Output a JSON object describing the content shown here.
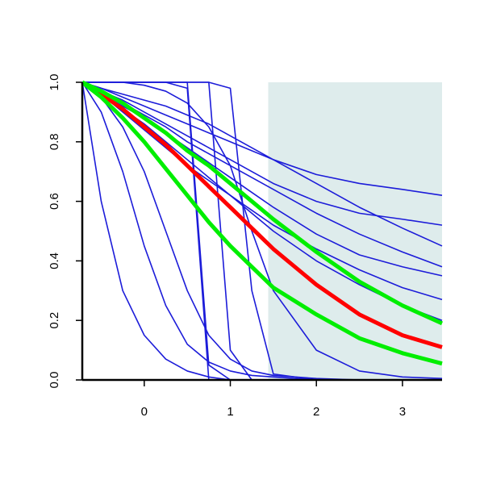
{
  "chart_data": {
    "type": "line",
    "x": [
      -0.72,
      -0.5,
      -0.25,
      0,
      0.25,
      0.5,
      0.75,
      1,
      1.25,
      1.5,
      2,
      2.5,
      3,
      3.46
    ],
    "xlim": [
      -0.72,
      3.46
    ],
    "ylim": [
      0,
      1
    ],
    "xticks": [
      0,
      1,
      2,
      3
    ],
    "yticks": [
      {
        "value": 0,
        "label": "0.0"
      },
      {
        "value": 0.2,
        "label": "0.2"
      },
      {
        "value": 0.4,
        "label": "0.4"
      },
      {
        "value": 0.6,
        "label": "0.6"
      },
      {
        "value": 0.8,
        "label": "0.8"
      },
      {
        "value": 1,
        "label": "1.0"
      }
    ],
    "shade_x": [
      1.44,
      3.46
    ],
    "shade_color": "#deecec",
    "series": [
      {
        "color": "#1c1cd9",
        "values": [
          1,
          0.98,
          0.95,
          0.92,
          0.89,
          0.86,
          0.83,
          0.8,
          0.77,
          0.74,
          0.69,
          0.66,
          0.64,
          0.62
        ]
      },
      {
        "color": "#1c1cd9",
        "values": [
          1,
          0.97,
          0.94,
          0.9,
          0.86,
          0.82,
          0.78,
          0.74,
          0.7,
          0.66,
          0.6,
          0.56,
          0.54,
          0.52
        ]
      },
      {
        "color": "#1c1cd9",
        "values": [
          1,
          0.98,
          0.96,
          0.94,
          0.92,
          0.89,
          0.86,
          0.82,
          0.78,
          0.74,
          0.66,
          0.58,
          0.51,
          0.45
        ]
      },
      {
        "color": "#1c1cd9",
        "values": [
          1,
          0.97,
          0.93,
          0.89,
          0.85,
          0.8,
          0.76,
          0.72,
          0.68,
          0.64,
          0.56,
          0.49,
          0.43,
          0.38
        ]
      },
      {
        "color": "#1c1cd9",
        "values": [
          1,
          0.96,
          0.92,
          0.88,
          0.83,
          0.78,
          0.73,
          0.68,
          0.63,
          0.58,
          0.49,
          0.42,
          0.38,
          0.35
        ]
      },
      {
        "color": "#1c1cd9",
        "values": [
          1,
          0.96,
          0.9,
          0.84,
          0.78,
          0.72,
          0.67,
          0.62,
          0.57,
          0.52,
          0.44,
          0.37,
          0.31,
          0.27
        ]
      },
      {
        "color": "#1c1cd9",
        "values": [
          1,
          0.96,
          0.91,
          0.86,
          0.8,
          0.74,
          0.68,
          0.62,
          0.56,
          0.5,
          0.4,
          0.32,
          0.25,
          0.2
        ]
      },
      {
        "color": "#1c1cd9",
        "values": [
          1,
          0.6,
          0.3,
          0.15,
          0.07,
          0.03,
          0.01,
          0,
          0,
          0,
          0,
          0,
          0,
          0
        ]
      },
      {
        "color": "#1c1cd9",
        "values": [
          1,
          0.9,
          0.7,
          0.45,
          0.25,
          0.12,
          0.06,
          0.03,
          0.015,
          0.01,
          0,
          0,
          0,
          0
        ]
      },
      {
        "color": "#1c1cd9",
        "values": [
          1,
          0.95,
          0.85,
          0.7,
          0.5,
          0.3,
          0.15,
          0.07,
          0.03,
          0.015,
          0.005,
          0,
          0,
          0
        ]
      },
      {
        "color": "#1c1cd9",
        "values": [
          1,
          1,
          1,
          1,
          1,
          0.98,
          0,
          0,
          0,
          0,
          0,
          0,
          0,
          0
        ]
      },
      {
        "color": "#1c1cd9",
        "values": [
          1,
          1,
          1,
          1,
          1,
          1,
          0.05,
          0,
          0,
          0,
          0,
          0,
          0,
          0
        ]
      },
      {
        "color": "#1c1cd9",
        "values": [
          1,
          1,
          1,
          1,
          1,
          1,
          1,
          0.1,
          0,
          0,
          0,
          0,
          0,
          0
        ]
      },
      {
        "color": "#1c1cd9",
        "values": [
          1,
          1,
          1,
          1,
          1,
          1,
          1,
          0.98,
          0.3,
          0.02,
          0,
          0,
          0,
          0
        ]
      },
      {
        "color": "#1c1cd9",
        "values": [
          1,
          1,
          1,
          0.99,
          0.97,
          0.93,
          0.85,
          0.72,
          0.5,
          0.3,
          0.1,
          0.03,
          0.01,
          0.005
        ]
      },
      {
        "color": "#ff0000",
        "values": [
          1,
          0.96,
          0.91,
          0.85,
          0.79,
          0.72,
          0.65,
          0.58,
          0.51,
          0.44,
          0.32,
          0.22,
          0.15,
          0.11
        ]
      },
      {
        "color": "#00ee00",
        "values": [
          1,
          0.97,
          0.93,
          0.88,
          0.83,
          0.77,
          0.72,
          0.66,
          0.6,
          0.54,
          0.43,
          0.33,
          0.25,
          0.19
        ]
      },
      {
        "color": "#00ee00",
        "values": [
          1,
          0.95,
          0.88,
          0.8,
          0.71,
          0.62,
          0.53,
          0.45,
          0.38,
          0.31,
          0.22,
          0.14,
          0.09,
          0.055
        ]
      }
    ]
  }
}
